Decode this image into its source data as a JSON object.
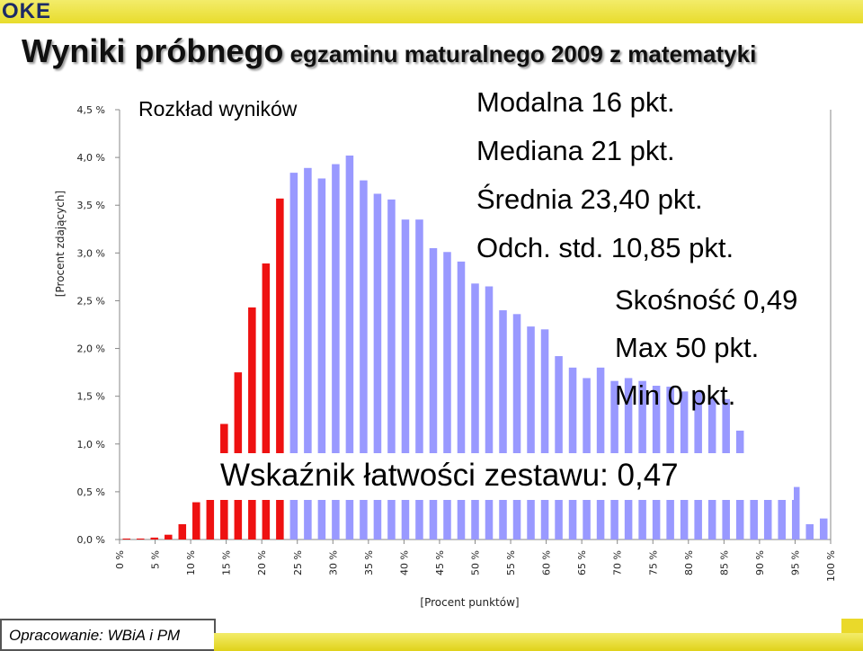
{
  "header": {
    "logo_text": "OKE",
    "title_bold": "Wyniki próbnego",
    "title_rest": " egzaminu maturalnego 2009 z matematyki"
  },
  "chart_data": {
    "type": "bar",
    "subtitle": "Rozkład wyników",
    "ylabel": "[Procent zdających]",
    "xlabel": "[Procent punktów]",
    "ylim": [
      0,
      4.5
    ],
    "yticks": [
      "0,0 %",
      "0,5 %",
      "1,0 %",
      "1,5 %",
      "2,0 %",
      "2,5 %",
      "3,0 %",
      "3,5 %",
      "4,0 %",
      "4,5 %"
    ],
    "xticks": [
      "0 %",
      "5 %",
      "10 %",
      "15 %",
      "20 %",
      "25 %",
      "30 %",
      "35 %",
      "40 %",
      "45 %",
      "50 %",
      "55 %",
      "60 %",
      "65 %",
      "70 %",
      "75 %",
      "80 %",
      "85 %",
      "90 %",
      "95 %",
      "100 %"
    ],
    "categories": [
      "0",
      "1",
      "2",
      "3",
      "4",
      "5",
      "6",
      "7",
      "8",
      "9",
      "10",
      "11",
      "12",
      "13",
      "14",
      "15",
      "16",
      "17",
      "18",
      "19",
      "20",
      "21",
      "22",
      "23",
      "24",
      "25",
      "26",
      "27",
      "28",
      "29",
      "30",
      "31",
      "32",
      "33",
      "34",
      "35",
      "36",
      "37",
      "38",
      "39",
      "40",
      "41",
      "42",
      "43",
      "44",
      "45",
      "46",
      "47",
      "48",
      "49",
      "50"
    ],
    "values": [
      0.01,
      0.01,
      0.02,
      0.05,
      0.16,
      0.39,
      0.6,
      1.21,
      1.75,
      2.43,
      2.89,
      3.57,
      3.84,
      3.89,
      3.78,
      3.93,
      4.02,
      3.76,
      3.62,
      3.56,
      3.35,
      3.35,
      3.05,
      3.01,
      2.91,
      2.68,
      2.65,
      2.4,
      2.36,
      2.23,
      2.2,
      1.92,
      1.8,
      1.69,
      1.8,
      1.66,
      1.69,
      1.66,
      1.61,
      1.6,
      1.55,
      1.55,
      1.48,
      1.47,
      1.14,
      0.6,
      0.6,
      0.6,
      0.55,
      0.16,
      0.22
    ],
    "highlight_count": 12,
    "colors": {
      "highlight": "#ee1111",
      "normal": "#9999ff",
      "axis": "#888888"
    },
    "statistics": {
      "mode": "Modalna 16 pkt.",
      "median": "Mediana 21 pkt.",
      "mean": "Średnia 23,40 pkt.",
      "sd": "Odch. std. 10,85 pkt.",
      "skew": "Skośność 0,49",
      "max": "Max 50 pkt.",
      "min": "Min 0 pkt."
    },
    "easiness": "Wskaźnik łatwości zestawu: 0,47"
  },
  "footer": {
    "text": "Opracowanie: WBiA i PM"
  }
}
